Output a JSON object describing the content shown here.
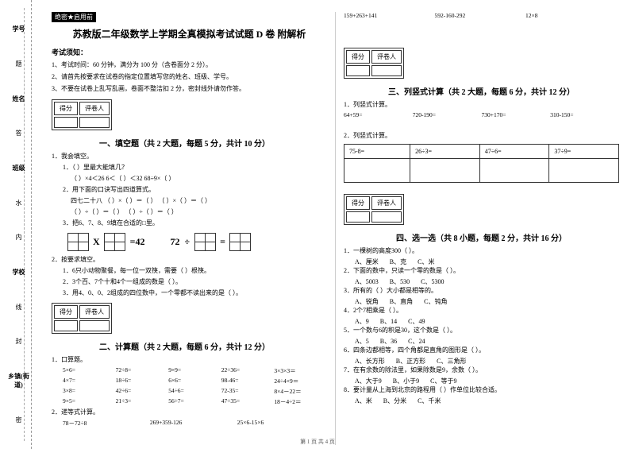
{
  "gutter": {
    "items": [
      "学号",
      "姓名",
      "班级",
      "学校",
      "乡镇(街道)"
    ],
    "marks": [
      "题",
      "答",
      "水",
      "内",
      "线",
      "封",
      "密"
    ]
  },
  "secret": "绝密★启用前",
  "title": "苏教版二年级数学上学期全真模拟考试试题 D 卷 附解析",
  "notice": {
    "head": "考试须知：",
    "items": [
      "1、考试时间：60 分钟，满分为 100 分（含卷面分 2 分）。",
      "2、请首先按要求在试卷的指定位置填写您的姓名、班级、学号。",
      "3、不要在试卷上乱写乱画，卷面不整洁扣 2 分，密封线外请勿作答。"
    ]
  },
  "scorebox": {
    "c1": "得分",
    "c2": "评卷人"
  },
  "s1": {
    "title": "一、填空题（共 2 大题，每题 5 分，共计 10 分）",
    "q1": "1．我会填空。",
    "q1_1": "1．（   ）里最大能填几？",
    "q1_1a": "（   ）×4＜26      6＜（   ）＜32      68÷9×（   ）",
    "q1_2": "2．用下面的口诀写出四道算式。",
    "q1_2a": "四七二十八      （  ）×（  ）＝（  ）   （  ）×（  ）＝（  ）",
    "q1_2b": "（  ）÷（  ）＝（  ）   （  ）÷（  ）＝（  ）",
    "q1_3": "3．把6、7、8、9填在合适的□里。",
    "eq1": "=42",
    "eq2_a": "72",
    "eq2_b": "÷",
    "eq2_c": "=",
    "q2": "2．按要求填空。",
    "q2_1": "1．6只小动物聚餐，每一位一双筷，需要（      ）根筷。",
    "q2_2": "2．3个百、7个十和4个一组成的数是（      ）。",
    "q2_3": "3．用4、0、0、2组成的四位数中，一个零都不读出来的是（      ）。"
  },
  "s2": {
    "title": "二、计算题（共 2 大题，每题 6 分，共计 12 分）",
    "q1": "1．口算题。",
    "rows": [
      [
        "5×6=",
        "72÷8=",
        "9×9=",
        "22÷36=",
        "3×3×3＝"
      ],
      [
        "4×7=",
        "18÷6=",
        "6×6=",
        "98-46=",
        "24÷4×9＝"
      ],
      [
        "3×8=",
        "42÷6=",
        "54÷6=",
        "72-35=",
        "8×4－22＝"
      ],
      [
        "9×5=",
        "21÷3=",
        "56÷7=",
        "47÷35=",
        "18－4÷2＝"
      ]
    ],
    "q2": "2．递等式计算。",
    "row2": [
      "78－72÷8",
      "269+359-126",
      "25×6-15×6"
    ]
  },
  "right_top": [
    "159+263+141",
    "592-160-292",
    "12×8"
  ],
  "s3": {
    "title": "三、列竖式计算（共 2 大题，每题 6 分，共计 12 分）",
    "q1": "1．列竖式计算。",
    "row1": [
      "64+59=",
      "720-190=",
      "730+170=",
      "310-150="
    ],
    "q2": "2．列竖式计算。",
    "cells": [
      "75-8=",
      "26÷3=",
      "47÷6=",
      "37÷9="
    ]
  },
  "s4": {
    "title": "四、选一选（共 8 小题，每题 2 分，共计 16 分）",
    "items": [
      {
        "q": "1．一棵树的高度300（   ）。",
        "opts": [
          "A、厘米",
          "B、克",
          "C、米"
        ]
      },
      {
        "q": "2．下面的数中，只读一个零的数是（      ）。",
        "opts": [
          "A、5003",
          "B、530",
          "C、5300"
        ]
      },
      {
        "q": "3．所有的（   ）大小都是相等的。",
        "opts": [
          "A、锐角",
          "B、直角",
          "C、钝角"
        ]
      },
      {
        "q": "4．2个7相乘是（   ）。",
        "opts": [
          "A、9",
          "B、14",
          "C、49"
        ]
      },
      {
        "q": "5．一个数与6的积是30，这个数是（   ）。",
        "opts": [
          "A、5",
          "B、36",
          "C、24"
        ]
      },
      {
        "q": "6．四条边都相等，四个角都是直角的图形是（   ）。",
        "opts": [
          "A、长方形",
          "B、正方形",
          "C、三角形"
        ]
      },
      {
        "q": "7．在有余数的除法里，如果除数是9，余数（   ）。",
        "opts": [
          "A、大于9",
          "B、小于9",
          "C、等于9"
        ]
      },
      {
        "q": "8．要计量从上海到北京的路程用（      ）作单位比较合适。",
        "opts": [
          "A、米",
          "B、分米",
          "C、千米"
        ]
      }
    ]
  },
  "footer": "第 1 页 共 4 页"
}
